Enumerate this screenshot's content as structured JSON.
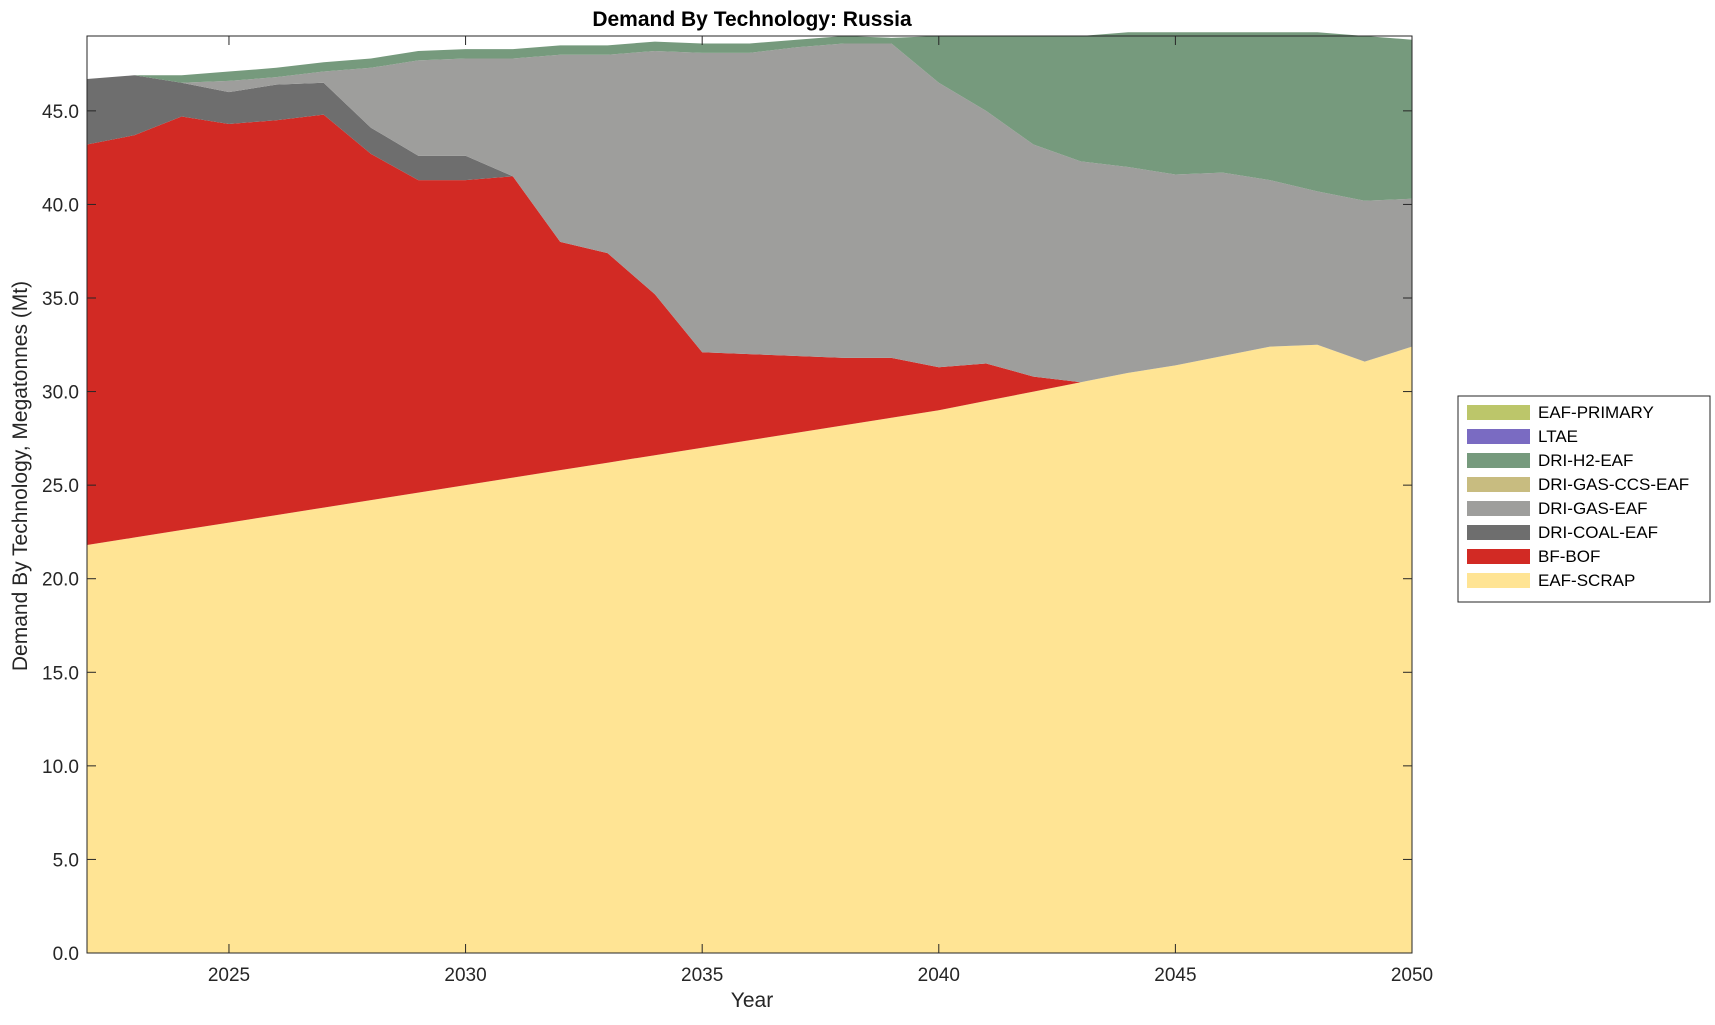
{
  "chart_data": {
    "type": "area",
    "stacked": true,
    "title": "Demand By Technology: Russia",
    "xlabel": "Year",
    "ylabel": "Demand By Technology, Megatonnes (Mt)",
    "xlim": [
      2022,
      2050
    ],
    "ylim": [
      0,
      49
    ],
    "xticks": [
      "2025",
      "2030",
      "2035",
      "2040",
      "2045",
      "2050"
    ],
    "yticks": [
      "0.0",
      "5.0",
      "10.0",
      "15.0",
      "20.0",
      "25.0",
      "30.0",
      "35.0",
      "40.0",
      "45.0"
    ],
    "grid": false,
    "legend_position": "right",
    "x": [
      2022,
      2023,
      2024,
      2025,
      2026,
      2027,
      2028,
      2029,
      2030,
      2031,
      2032,
      2033,
      2034,
      2035,
      2036,
      2037,
      2038,
      2039,
      2040,
      2041,
      2042,
      2043,
      2044,
      2045,
      2046,
      2047,
      2048,
      2049,
      2050
    ],
    "series": [
      {
        "name": "EAF-SCRAP",
        "color": "#FFE494",
        "values": [
          21.8,
          22.2,
          22.6,
          23.0,
          23.4,
          23.8,
          24.2,
          24.6,
          25.0,
          25.4,
          25.8,
          26.2,
          26.6,
          27.0,
          27.4,
          27.8,
          28.2,
          28.6,
          29.0,
          29.5,
          30.0,
          30.5,
          31.0,
          31.4,
          31.9,
          32.4,
          32.5,
          31.6,
          32.4
        ]
      },
      {
        "name": "BF-BOF",
        "color": "#D22A24",
        "values": [
          21.4,
          21.5,
          22.1,
          21.3,
          21.1,
          21.0,
          18.5,
          16.7,
          16.3,
          16.1,
          12.2,
          11.2,
          8.6,
          5.1,
          4.6,
          4.1,
          3.6,
          3.2,
          2.3,
          2.0,
          0.8,
          0.0,
          0.0,
          0.0,
          0.0,
          0.0,
          0.0,
          0.0,
          0.0
        ]
      },
      {
        "name": "DRI-COAL-EAF",
        "color": "#6E6E6E",
        "values": [
          3.5,
          3.2,
          1.8,
          1.7,
          1.9,
          1.7,
          1.4,
          1.3,
          1.3,
          0.0,
          0.0,
          0.0,
          0.0,
          0.0,
          0.0,
          0.0,
          0.0,
          0.0,
          0.0,
          0.0,
          0.0,
          0.0,
          0.0,
          0.0,
          0.0,
          0.0,
          0.0,
          0.0,
          0.0
        ]
      },
      {
        "name": "DRI-GAS-EAF",
        "color": "#9E9E9C",
        "values": [
          0.0,
          0.0,
          0.0,
          0.6,
          0.4,
          0.6,
          3.2,
          5.1,
          5.2,
          6.3,
          10.0,
          10.6,
          13.0,
          16.0,
          16.1,
          16.5,
          16.8,
          16.8,
          15.2,
          13.5,
          12.4,
          11.8,
          11.0,
          10.2,
          9.8,
          8.9,
          8.2,
          8.6,
          7.9
        ]
      },
      {
        "name": "DRI-GAS-CCS-EAF",
        "color": "#C8BC80",
        "values": [
          0,
          0,
          0,
          0,
          0,
          0,
          0,
          0,
          0,
          0,
          0,
          0,
          0,
          0,
          0,
          0,
          0,
          0,
          0,
          0,
          0,
          0,
          0,
          0,
          0,
          0,
          0,
          0,
          0
        ]
      },
      {
        "name": "DRI-H2-EAF",
        "color": "#769A7D",
        "values": [
          0.0,
          0.0,
          0.4,
          0.5,
          0.5,
          0.5,
          0.5,
          0.5,
          0.5,
          0.5,
          0.5,
          0.5,
          0.5,
          0.5,
          0.5,
          0.4,
          0.4,
          0.3,
          2.5,
          4.0,
          5.8,
          6.7,
          7.2,
          7.6,
          7.5,
          7.9,
          8.5,
          8.8,
          8.5
        ]
      },
      {
        "name": "LTAE",
        "color": "#7A6BC2",
        "values": [
          0,
          0,
          0,
          0,
          0,
          0,
          0,
          0,
          0,
          0,
          0,
          0,
          0,
          0,
          0,
          0,
          0,
          0,
          0,
          0,
          0,
          0,
          0,
          0,
          0,
          0,
          0,
          0,
          0
        ]
      },
      {
        "name": "EAF-PRIMARY",
        "color": "#BCC66A",
        "values": [
          0,
          0,
          0,
          0,
          0,
          0,
          0,
          0,
          0,
          0,
          0,
          0,
          0,
          0,
          0,
          0,
          0,
          0,
          0,
          0,
          0,
          0,
          0,
          0,
          0,
          0,
          0,
          0,
          0
        ]
      }
    ],
    "legend_order": [
      "EAF-PRIMARY",
      "LTAE",
      "DRI-H2-EAF",
      "DRI-GAS-CCS-EAF",
      "DRI-GAS-EAF",
      "DRI-COAL-EAF",
      "BF-BOF",
      "EAF-SCRAP"
    ]
  }
}
